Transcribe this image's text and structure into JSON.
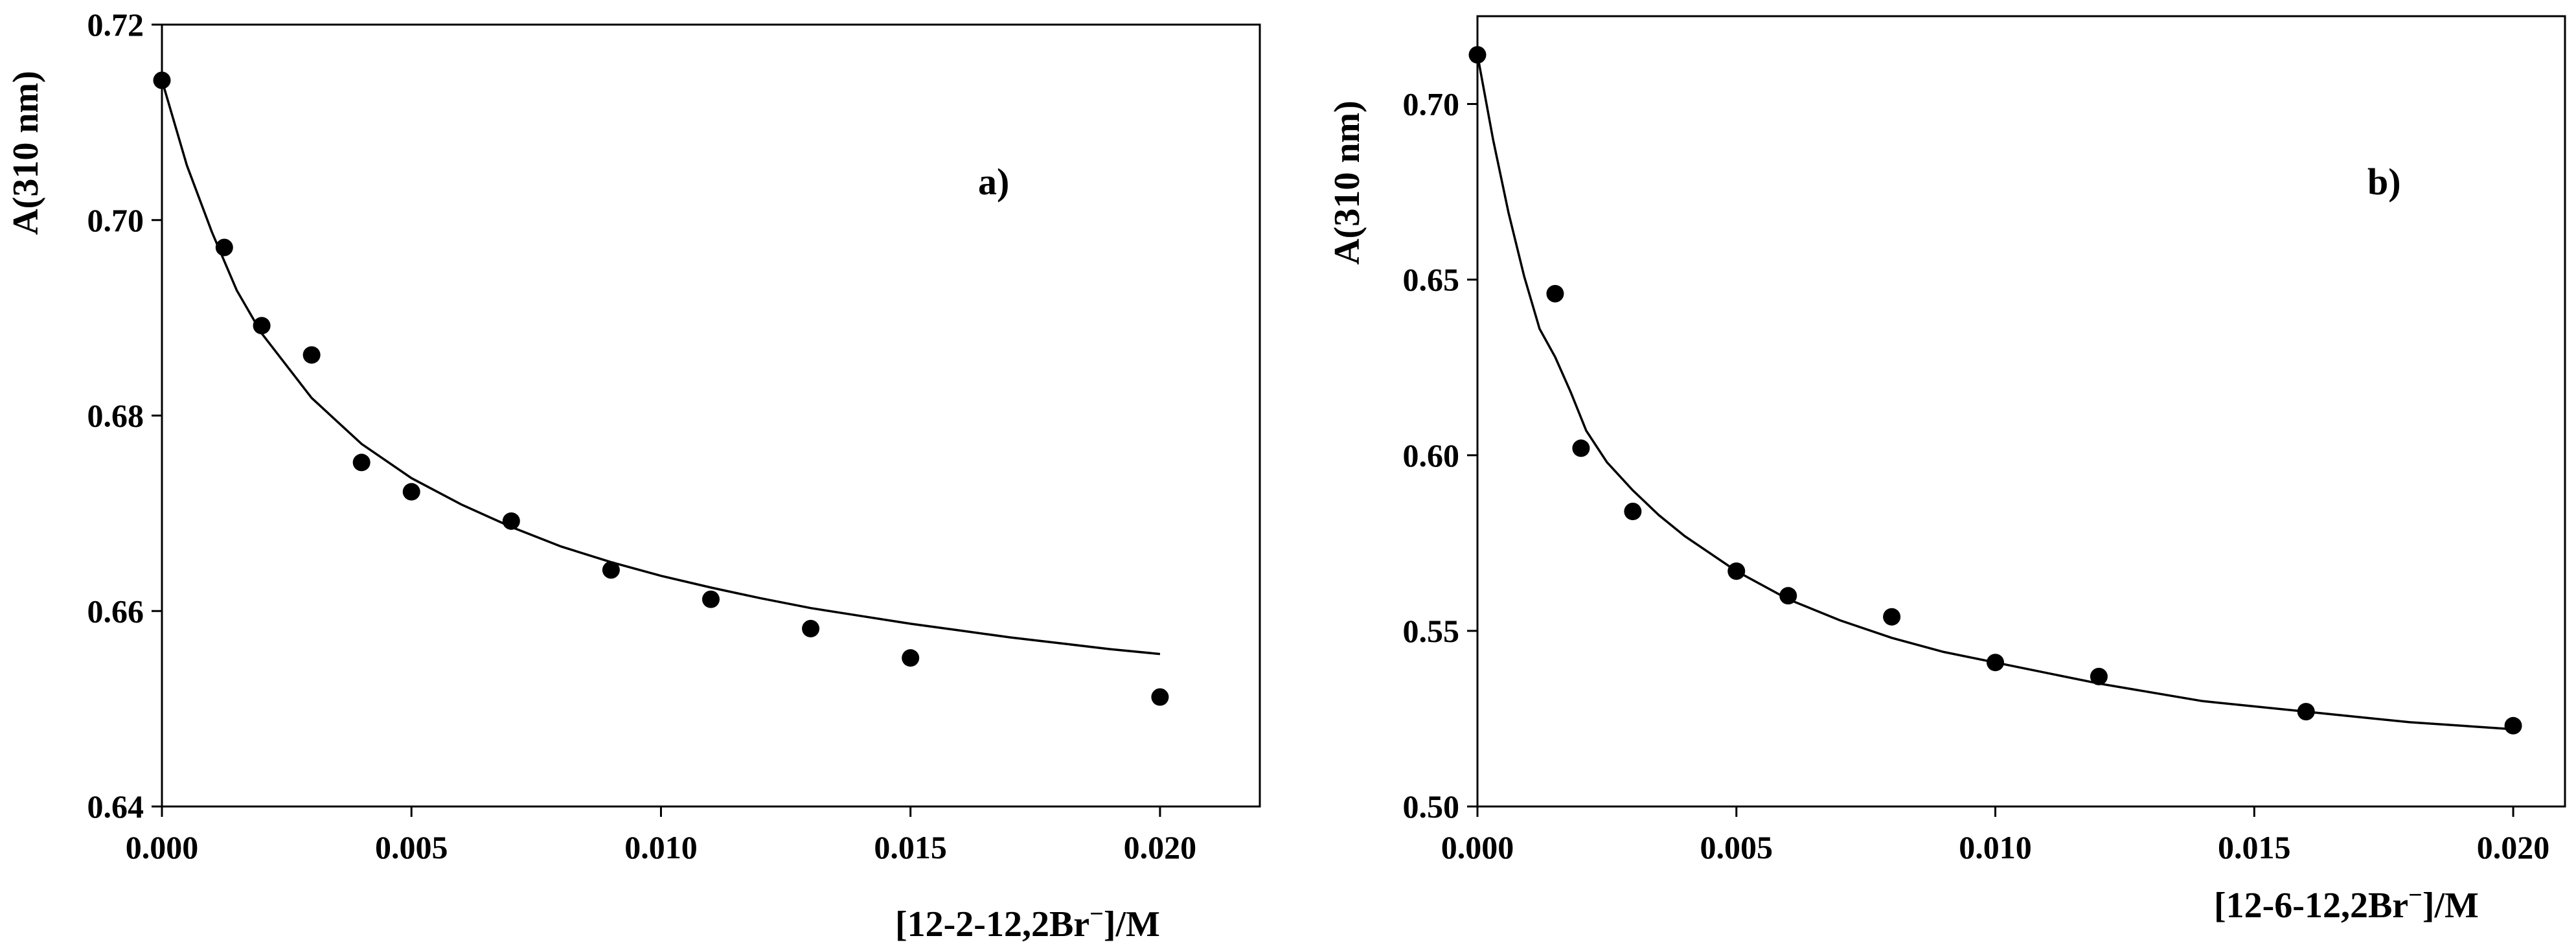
{
  "colors": {
    "ink": "#000000",
    "background": "#ffffff"
  },
  "chart_data": [
    {
      "type": "scatter",
      "panel_label": "a)",
      "xlabel": {
        "prefix": "[12-2-12,2Br",
        "sup": "−",
        "suffix": "]/M"
      },
      "ylabel": "A(310 nm)",
      "xlim": [
        0,
        0.022
      ],
      "ylim": [
        0.64,
        0.72
      ],
      "x_ticks": [
        0.0,
        0.005,
        0.01,
        0.015,
        0.02
      ],
      "x_tick_labels": [
        "0.000",
        "0.005",
        "0.010",
        "0.015",
        "0.020"
      ],
      "y_ticks": [
        0.64,
        0.66,
        0.68,
        0.7,
        0.72
      ],
      "y_tick_labels": [
        "0.64",
        "0.66",
        "0.68",
        "0.70",
        "0.72"
      ],
      "series": [
        {
          "name": "measured",
          "kind": "points",
          "x": [
            0.0,
            0.00125,
            0.002,
            0.003,
            0.004,
            0.005,
            0.007,
            0.009,
            0.011,
            0.013,
            0.015,
            0.02
          ],
          "y": [
            0.7143,
            0.6972,
            0.6892,
            0.6862,
            0.6752,
            0.6722,
            0.6692,
            0.6642,
            0.6612,
            0.6582,
            0.6552,
            0.6512
          ]
        },
        {
          "name": "fit",
          "kind": "line",
          "x": [
            0.0,
            0.0005,
            0.001,
            0.0015,
            0.002,
            0.003,
            0.004,
            0.005,
            0.006,
            0.007,
            0.008,
            0.009,
            0.01,
            0.011,
            0.012,
            0.013,
            0.014,
            0.015,
            0.016,
            0.017,
            0.018,
            0.019,
            0.02
          ],
          "y": [
            0.7143,
            0.7056,
            0.6988,
            0.6928,
            0.6884,
            0.6818,
            0.6771,
            0.6736,
            0.6709,
            0.6686,
            0.6666,
            0.665,
            0.6636,
            0.6624,
            0.6613,
            0.6603,
            0.6595,
            0.6587,
            0.658,
            0.6573,
            0.6567,
            0.6561,
            0.6556
          ]
        }
      ]
    },
    {
      "type": "scatter",
      "panel_label": "b)",
      "xlabel": {
        "prefix": "[12-6-12,2Br",
        "sup": "−",
        "suffix": "]/M"
      },
      "ylabel": "A(310 nm)",
      "xlim": [
        0,
        0.021
      ],
      "ylim": [
        0.5,
        0.725
      ],
      "x_ticks": [
        0.0,
        0.005,
        0.01,
        0.015,
        0.02
      ],
      "x_tick_labels": [
        "0.000",
        "0.005",
        "0.010",
        "0.015",
        "0.020"
      ],
      "y_ticks": [
        0.5,
        0.55,
        0.6,
        0.65,
        0.7
      ],
      "y_tick_labels": [
        "0.50",
        "0.55",
        "0.60",
        "0.65",
        "0.70"
      ],
      "series": [
        {
          "name": "measured",
          "kind": "points",
          "x": [
            0.0,
            0.0015,
            0.002,
            0.003,
            0.005,
            0.006,
            0.008,
            0.01,
            0.012,
            0.016,
            0.02
          ],
          "y": [
            0.714,
            0.646,
            0.602,
            0.584,
            0.567,
            0.56,
            0.554,
            0.541,
            0.537,
            0.527,
            0.523
          ]
        },
        {
          "name": "fit",
          "kind": "line",
          "x": [
            0.0,
            0.0003,
            0.0006,
            0.0009,
            0.0012,
            0.0015,
            0.0018,
            0.0021,
            0.0025,
            0.003,
            0.0035,
            0.004,
            0.005,
            0.006,
            0.007,
            0.008,
            0.009,
            0.01,
            0.012,
            0.014,
            0.016,
            0.018,
            0.02
          ],
          "y": [
            0.714,
            0.69,
            0.669,
            0.651,
            0.636,
            0.628,
            0.618,
            0.607,
            0.598,
            0.59,
            0.583,
            0.577,
            0.567,
            0.559,
            0.553,
            0.548,
            0.544,
            0.541,
            0.535,
            0.53,
            0.527,
            0.524,
            0.522
          ]
        }
      ]
    }
  ]
}
